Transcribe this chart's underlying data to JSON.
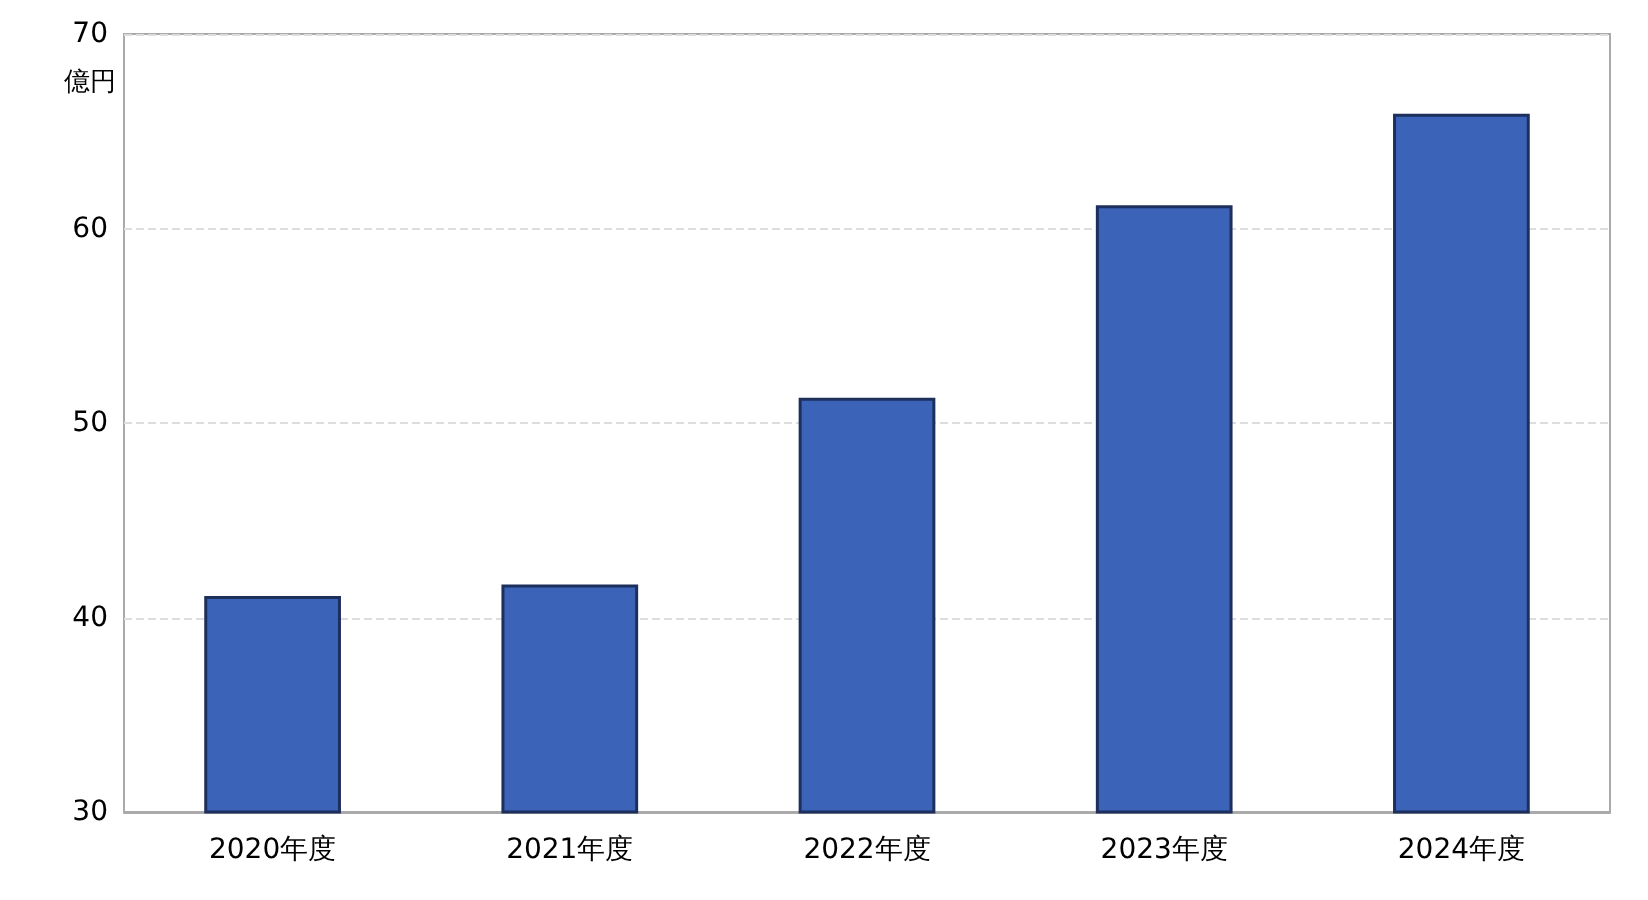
{
  "chart_data": {
    "type": "bar",
    "ylabel": "億円",
    "categories": [
      "2020年度",
      "2021年度",
      "2022年度",
      "2023年度",
      "2024年度"
    ],
    "values": [
      41.1,
      41.7,
      51.3,
      61.2,
      65.9
    ],
    "color": "#3b64b9",
    "ylim": [
      30,
      70
    ],
    "yticks": [
      30,
      40,
      50,
      60,
      70
    ],
    "grid": "y"
  }
}
